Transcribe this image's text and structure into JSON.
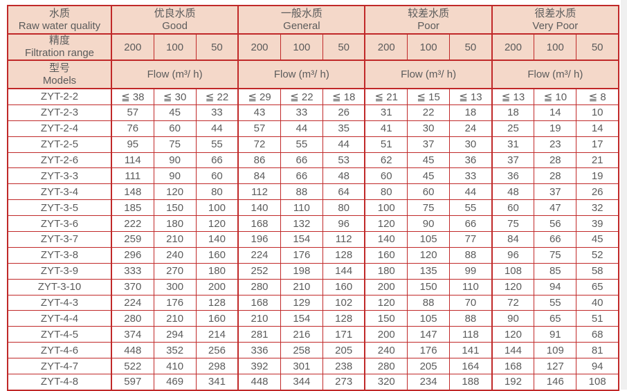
{
  "page": {
    "background": "#ffffff",
    "right_strip_color": "#f0f0f0"
  },
  "table": {
    "border_color": "#c02828",
    "header_bg": "#f4d8c9",
    "text_color": "#5b5b5b",
    "corner": {
      "row1": {
        "zh": "水质",
        "en": "Raw water quality"
      },
      "row2": {
        "zh": "精度",
        "en": "Filtration range"
      },
      "row3": {
        "zh": "型号",
        "en": "Models"
      }
    },
    "quality_groups": [
      {
        "zh": "优良水质",
        "en": "Good"
      },
      {
        "zh": "一般水质",
        "en": "General"
      },
      {
        "zh": "较差水质",
        "en": "Poor"
      },
      {
        "zh": "很差水质",
        "en": "Very Poor"
      }
    ],
    "filtration_values": [
      "200",
      "100",
      "50"
    ],
    "flow_label": "Flow (m³/ h)",
    "rows": [
      {
        "model": "ZYT-2-2",
        "values": [
          "≦ 38",
          "≦ 30",
          "≦ 22",
          "≦ 29",
          "≦ 22",
          "≦ 18",
          "≦ 21",
          "≦ 15",
          "≦ 13",
          "≦ 13",
          "≦ 10",
          "≦ 8"
        ]
      },
      {
        "model": "ZYT-2-3",
        "values": [
          57,
          45,
          33,
          43,
          33,
          26,
          31,
          22,
          18,
          18,
          14,
          10
        ]
      },
      {
        "model": "ZYT-2-4",
        "values": [
          76,
          60,
          44,
          57,
          44,
          35,
          41,
          30,
          24,
          25,
          19,
          14
        ]
      },
      {
        "model": "ZYT-2-5",
        "values": [
          95,
          75,
          55,
          72,
          55,
          44,
          51,
          37,
          30,
          31,
          23,
          17
        ]
      },
      {
        "model": "ZYT-2-6",
        "values": [
          114,
          90,
          66,
          86,
          66,
          53,
          62,
          45,
          36,
          37,
          28,
          21
        ]
      },
      {
        "model": "ZYT-3-3",
        "values": [
          111,
          90,
          60,
          84,
          66,
          48,
          60,
          45,
          33,
          36,
          28,
          19
        ]
      },
      {
        "model": "ZYT-3-4",
        "values": [
          148,
          120,
          80,
          112,
          88,
          64,
          80,
          60,
          44,
          48,
          37,
          26
        ]
      },
      {
        "model": "ZYT-3-5",
        "values": [
          185,
          150,
          100,
          140,
          110,
          80,
          100,
          75,
          55,
          60,
          47,
          32
        ]
      },
      {
        "model": "ZYT-3-6",
        "values": [
          222,
          180,
          120,
          168,
          132,
          96,
          120,
          90,
          66,
          75,
          56,
          39
        ]
      },
      {
        "model": "ZYT-3-7",
        "values": [
          259,
          210,
          140,
          196,
          154,
          112,
          140,
          105,
          77,
          84,
          66,
          45
        ]
      },
      {
        "model": "ZYT-3-8",
        "values": [
          296,
          240,
          160,
          224,
          176,
          128,
          160,
          120,
          88,
          96,
          75,
          52
        ]
      },
      {
        "model": "ZYT-3-9",
        "values": [
          333,
          270,
          180,
          252,
          198,
          144,
          180,
          135,
          99,
          108,
          85,
          58
        ]
      },
      {
        "model": "ZYT-3-10",
        "values": [
          370,
          300,
          200,
          280,
          210,
          160,
          200,
          150,
          110,
          120,
          94,
          65
        ]
      },
      {
        "model": "ZYT-4-3",
        "values": [
          224,
          176,
          128,
          168,
          129,
          102,
          120,
          88,
          70,
          72,
          55,
          40
        ]
      },
      {
        "model": "ZYT-4-4",
        "values": [
          280,
          210,
          160,
          210,
          154,
          128,
          150,
          105,
          88,
          90,
          65,
          51
        ]
      },
      {
        "model": "ZYT-4-5",
        "values": [
          374,
          294,
          214,
          281,
          216,
          171,
          200,
          147,
          118,
          120,
          91,
          68
        ]
      },
      {
        "model": "ZYT-4-6",
        "values": [
          448,
          352,
          256,
          336,
          258,
          205,
          240,
          176,
          141,
          144,
          109,
          81
        ]
      },
      {
        "model": "ZYT-4-7",
        "values": [
          522,
          410,
          298,
          392,
          301,
          238,
          280,
          205,
          164,
          168,
          127,
          94
        ]
      },
      {
        "model": "ZYT-4-8",
        "values": [
          597,
          469,
          341,
          448,
          344,
          273,
          320,
          234,
          188,
          192,
          146,
          108
        ]
      }
    ]
  }
}
